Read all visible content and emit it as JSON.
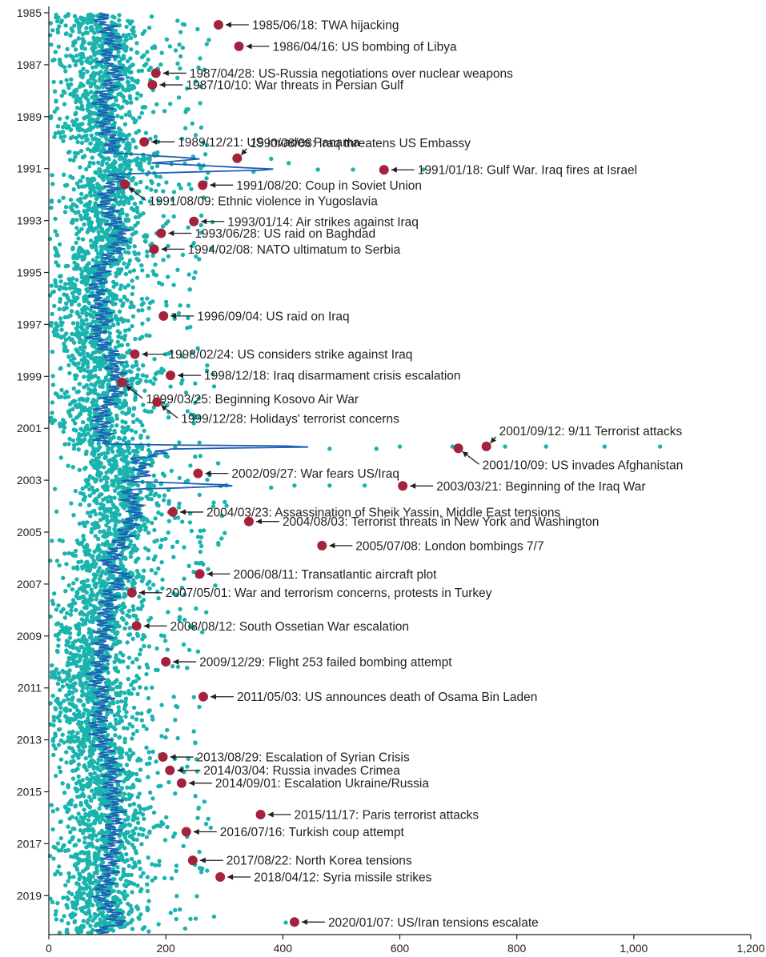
{
  "chart_data": {
    "type": "scatter",
    "orientation": "horizontal-time-vertical",
    "title": "",
    "xlabel": "",
    "ylabel": "",
    "xlim": [
      0,
      1200
    ],
    "ylim": [
      1985.0,
      2020.5
    ],
    "y_reversed": true,
    "x_ticks": [
      {
        "value": 0,
        "label": "0"
      },
      {
        "value": 200,
        "label": "200"
      },
      {
        "value": 400,
        "label": "400"
      },
      {
        "value": 600,
        "label": "600"
      },
      {
        "value": 800,
        "label": "800"
      },
      {
        "value": 1000,
        "label": "1,000"
      },
      {
        "value": 1200,
        "label": "1,200"
      }
    ],
    "y_ticks": [
      {
        "value": 1985,
        "label": "1985"
      },
      {
        "value": 1987,
        "label": "1987"
      },
      {
        "value": 1989,
        "label": "1989"
      },
      {
        "value": 1991,
        "label": "1991"
      },
      {
        "value": 1993,
        "label": "1993"
      },
      {
        "value": 1995,
        "label": "1995"
      },
      {
        "value": 1997,
        "label": "1997"
      },
      {
        "value": 1999,
        "label": "1999"
      },
      {
        "value": 2001,
        "label": "2001"
      },
      {
        "value": 2003,
        "label": "2003"
      },
      {
        "value": 2005,
        "label": "2005"
      },
      {
        "value": 2007,
        "label": "2007"
      },
      {
        "value": 2009,
        "label": "2009"
      },
      {
        "value": 2011,
        "label": "2011"
      },
      {
        "value": 2013,
        "label": "2013"
      },
      {
        "value": 2015,
        "label": "2015"
      },
      {
        "value": 2017,
        "label": "2017"
      },
      {
        "value": 2019,
        "label": "2019"
      }
    ],
    "grid": false,
    "colors": {
      "daily_points": "#1ab3ae",
      "smoothed_line": "#1f5fb4",
      "event_points": "#a4223d",
      "axis": "#231f20"
    },
    "series": [
      {
        "role": "smoothed",
        "points": [
          {
            "date": "1985-01",
            "value": 85
          },
          {
            "date": "1985-07",
            "value": 100
          },
          {
            "date": "1986-04",
            "value": 112
          },
          {
            "date": "1986-10",
            "value": 95
          },
          {
            "date": "1987-04",
            "value": 118
          },
          {
            "date": "1987-10",
            "value": 105
          },
          {
            "date": "1988-05",
            "value": 90
          },
          {
            "date": "1988-12",
            "value": 98
          },
          {
            "date": "1989-06",
            "value": 95
          },
          {
            "date": "1989-12",
            "value": 115
          },
          {
            "date": "1990-05",
            "value": 100
          },
          {
            "date": "1990-08",
            "value": 260
          },
          {
            "date": "1990-10",
            "value": 180
          },
          {
            "date": "1991-01",
            "value": 400
          },
          {
            "date": "1991-03",
            "value": 120
          },
          {
            "date": "1991-08",
            "value": 110
          },
          {
            "date": "1992-03",
            "value": 95
          },
          {
            "date": "1993-01",
            "value": 112
          },
          {
            "date": "1993-06",
            "value": 125
          },
          {
            "date": "1994-02",
            "value": 115
          },
          {
            "date": "1994-10",
            "value": 90
          },
          {
            "date": "1995-07",
            "value": 82
          },
          {
            "date": "1996-04",
            "value": 88
          },
          {
            "date": "1996-09",
            "value": 95
          },
          {
            "date": "1997-06",
            "value": 80
          },
          {
            "date": "1998-02",
            "value": 108
          },
          {
            "date": "1998-12",
            "value": 115
          },
          {
            "date": "1999-03",
            "value": 125
          },
          {
            "date": "1999-12",
            "value": 102
          },
          {
            "date": "2000-06",
            "value": 88
          },
          {
            "date": "2001-03",
            "value": 92
          },
          {
            "date": "2001-08",
            "value": 95
          },
          {
            "date": "2001-09",
            "value": 510
          },
          {
            "date": "2001-10",
            "value": 210
          },
          {
            "date": "2002-03",
            "value": 150
          },
          {
            "date": "2002-09",
            "value": 165
          },
          {
            "date": "2003-01",
            "value": 140
          },
          {
            "date": "2003-03",
            "value": 330
          },
          {
            "date": "2003-05",
            "value": 135
          },
          {
            "date": "2004-03",
            "value": 150
          },
          {
            "date": "2004-08",
            "value": 140
          },
          {
            "date": "2005-07",
            "value": 120
          },
          {
            "date": "2006-04",
            "value": 100
          },
          {
            "date": "2006-08",
            "value": 130
          },
          {
            "date": "2007-05",
            "value": 105
          },
          {
            "date": "2008-08",
            "value": 95
          },
          {
            "date": "2009-12",
            "value": 90
          },
          {
            "date": "2010-08",
            "value": 80
          },
          {
            "date": "2011-05",
            "value": 95
          },
          {
            "date": "2012-06",
            "value": 82
          },
          {
            "date": "2013-08",
            "value": 100
          },
          {
            "date": "2014-03",
            "value": 110
          },
          {
            "date": "2014-09",
            "value": 105
          },
          {
            "date": "2015-11",
            "value": 115
          },
          {
            "date": "2016-07",
            "value": 110
          },
          {
            "date": "2017-08",
            "value": 105
          },
          {
            "date": "2018-04",
            "value": 100
          },
          {
            "date": "2019-01",
            "value": 90
          },
          {
            "date": "2020-01",
            "value": 120
          },
          {
            "date": "2020-06",
            "value": 80
          }
        ]
      },
      {
        "role": "events",
        "points": [
          {
            "date": "1985-06-18",
            "value": 290,
            "label": "1985/06/18: TWA hijacking"
          },
          {
            "date": "1986-04-16",
            "value": 325,
            "label": "1986/04/16: US bombing of Libya"
          },
          {
            "date": "1987-04-28",
            "value": 183,
            "label": "1987/04/28: US-Russia negotiations over nuclear weapons"
          },
          {
            "date": "1987-10-10",
            "value": 177,
            "label": "1987/10/10: War threats in Persian Gulf"
          },
          {
            "date": "1989-12-21",
            "value": 163,
            "label": "1989/12/21: US invades Panama"
          },
          {
            "date": "1990-08-08",
            "value": 322,
            "label": "1990/08/08: Iraq threatens US Embassy"
          },
          {
            "date": "1991-01-18",
            "value": 573,
            "label": "1991/01/18: Gulf War. Iraq fires at Israel"
          },
          {
            "date": "1991-08-20",
            "value": 263,
            "label": "1991/08/20: Coup in Soviet Union"
          },
          {
            "date": "1991-08-09",
            "value": 130,
            "label": "1991/08/09: Ethnic violence in Yugoslavia"
          },
          {
            "date": "1993-01-14",
            "value": 248,
            "label": "1993/01/14: Air strikes against Iraq"
          },
          {
            "date": "1993-06-28",
            "value": 192,
            "label": "1993/06/28: US raid on Baghdad"
          },
          {
            "date": "1994-02-08",
            "value": 180,
            "label": "1994/02/08: NATO ultimatum to Serbia"
          },
          {
            "date": "1996-09-04",
            "value": 196,
            "label": "1996/09/04: US raid on Iraq"
          },
          {
            "date": "1998-02-24",
            "value": 147,
            "label": "1998/02/24: US considers strike against Iraq"
          },
          {
            "date": "1998-12-18",
            "value": 208,
            "label": "1998/12/18: Iraq disarmament crisis escalation"
          },
          {
            "date": "1999-03-25",
            "value": 125,
            "label": "1999/03/25: Beginning Kosovo Air War"
          },
          {
            "date": "1999-12-28",
            "value": 185,
            "label": "1999/12/28: Holidays' terrorist concerns"
          },
          {
            "date": "2001-09-12",
            "value": 748,
            "label": "2001/09/12: 9/11 Terrorist attacks"
          },
          {
            "date": "2001-10-09",
            "value": 700,
            "label": "2001/10/09: US invades Afghanistan"
          },
          {
            "date": "2002-09-27",
            "value": 255,
            "label": "2002/09/27: War fears US/Iraq"
          },
          {
            "date": "2003-03-21",
            "value": 605,
            "label": "2003/03/21: Beginning of the Iraq War"
          },
          {
            "date": "2004-03-23",
            "value": 212,
            "label": "2004/03/23: Assassination of Sheik Yassin, Middle East tensions"
          },
          {
            "date": "2004-08-03",
            "value": 342,
            "label": "2004/08/03: Terrorist threats in New York and Washington"
          },
          {
            "date": "2005-07-08",
            "value": 467,
            "label": "2005/07/08: London bombings 7/7"
          },
          {
            "date": "2006-08-11",
            "value": 258,
            "label": "2006/08/11: Transatlantic aircraft plot"
          },
          {
            "date": "2007-05-01",
            "value": 142,
            "label": "2007/05/01: War and terrorism concerns, protests in Turkey"
          },
          {
            "date": "2008-08-12",
            "value": 150,
            "label": "2008/08/12: South Ossetian War escalation"
          },
          {
            "date": "2009-12-29",
            "value": 200,
            "label": "2009/12/29: Flight 253 failed bombing attempt"
          },
          {
            "date": "2011-05-03",
            "value": 264,
            "label": "2011/05/03: US announces death of Osama Bin Laden"
          },
          {
            "date": "2013-08-29",
            "value": 195,
            "label": "2013/08/29: Escalation of Syrian Crisis"
          },
          {
            "date": "2014-03-04",
            "value": 207,
            "label": "2014/03/04: Russia invades Crimea"
          },
          {
            "date": "2014-09-01",
            "value": 227,
            "label": "2014/09/01: Escalation Ukraine/Russia"
          },
          {
            "date": "2015-11-17",
            "value": 362,
            "label": "2015/11/17: Paris terrorist attacks"
          },
          {
            "date": "2016-07-16",
            "value": 235,
            "label": "2016/07/16: Turkish coup attempt"
          },
          {
            "date": "2017-08-22",
            "value": 246,
            "label": "2017/08/22: North Korea tensions"
          },
          {
            "date": "2018-04-12",
            "value": 293,
            "label": "2018/04/12: Syria missile strikes"
          },
          {
            "date": "2020-01-07",
            "value": 420,
            "label": "2020/01/07: US/Iran tensions escalate"
          }
        ]
      }
    ],
    "outlier_points": [
      {
        "date": "1985-06",
        "value": 232
      },
      {
        "date": "1986-03",
        "value": 270
      },
      {
        "date": "1990-08",
        "value": 380
      },
      {
        "date": "1990-10",
        "value": 410
      },
      {
        "date": "1991-01",
        "value": 460
      },
      {
        "date": "1991-01",
        "value": 520
      },
      {
        "date": "1991-01",
        "value": 640
      },
      {
        "date": "1991-02",
        "value": 350
      },
      {
        "date": "2001-09",
        "value": 600
      },
      {
        "date": "2001-09",
        "value": 690
      },
      {
        "date": "2001-09",
        "value": 780
      },
      {
        "date": "2001-09",
        "value": 850
      },
      {
        "date": "2001-09",
        "value": 950
      },
      {
        "date": "2001-09",
        "value": 1045
      },
      {
        "date": "2001-10",
        "value": 560
      },
      {
        "date": "2001-10",
        "value": 480
      },
      {
        "date": "2003-03",
        "value": 420
      },
      {
        "date": "2003-03",
        "value": 480
      },
      {
        "date": "2003-03",
        "value": 540
      },
      {
        "date": "2003-04",
        "value": 380
      },
      {
        "date": "2020-01",
        "value": 405
      }
    ]
  }
}
